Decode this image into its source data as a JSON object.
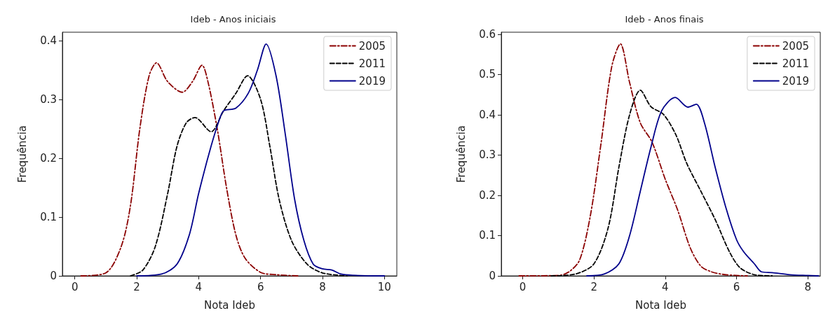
{
  "chart_data": [
    {
      "type": "line",
      "title": "Ideb - Anos iniciais",
      "xlabel": "Nota Ideb",
      "ylabel": "Frequência",
      "xlim": [
        -0.4,
        10.4
      ],
      "ylim": [
        0,
        0.414
      ],
      "xticks": [
        0,
        2,
        4,
        6,
        8,
        10
      ],
      "yticks": [
        0,
        0.1,
        0.2,
        0.3,
        0.4
      ],
      "grid": false,
      "legend": "top right",
      "marker": "none",
      "series": [
        {
          "name": "2005",
          "color": "#8b0000",
          "line_style": "dashdot",
          "x": [
            0.2,
            1.0,
            1.5,
            1.8,
            2.1,
            2.4,
            2.64,
            3.0,
            3.47,
            3.8,
            4.11,
            4.3,
            4.6,
            4.9,
            5.2,
            5.5,
            6.0,
            6.5,
            7.2
          ],
          "values": [
            0,
            0.005,
            0.05,
            0.12,
            0.25,
            0.34,
            0.362,
            0.33,
            0.312,
            0.33,
            0.358,
            0.33,
            0.25,
            0.15,
            0.07,
            0.03,
            0.006,
            0.002,
            0
          ]
        },
        {
          "name": "2011",
          "color": "#000000",
          "line_style": "dashed",
          "x": [
            1.8,
            2.2,
            2.6,
            3.0,
            3.3,
            3.6,
            3.88,
            4.4,
            4.8,
            5.2,
            5.58,
            6.0,
            6.3,
            6.6,
            7.0,
            7.5,
            8.0,
            8.8
          ],
          "values": [
            0,
            0.01,
            0.05,
            0.14,
            0.22,
            0.26,
            0.269,
            0.245,
            0.28,
            0.31,
            0.34,
            0.3,
            0.22,
            0.13,
            0.06,
            0.02,
            0.005,
            0
          ]
        },
        {
          "name": "2019",
          "color": "#00008b",
          "line_style": "solid",
          "x": [
            2.0,
            2.8,
            3.3,
            3.7,
            4.0,
            4.4,
            4.7,
            4.82,
            5.2,
            5.6,
            5.9,
            6.18,
            6.5,
            6.8,
            7.1,
            7.4,
            7.7,
            8.0,
            8.3,
            8.6,
            9.0,
            10.0
          ],
          "values": [
            0,
            0.003,
            0.02,
            0.07,
            0.14,
            0.22,
            0.27,
            0.281,
            0.285,
            0.31,
            0.35,
            0.394,
            0.34,
            0.24,
            0.13,
            0.06,
            0.02,
            0.012,
            0.01,
            0.003,
            0.001,
            0
          ]
        }
      ]
    },
    {
      "type": "line",
      "title": "Ideb - Anos finais",
      "xlabel": "Nota Ideb",
      "ylabel": "Frequência",
      "xlim": [
        -0.6,
        8.35
      ],
      "ylim": [
        0,
        0.605
      ],
      "xticks": [
        0,
        2,
        4,
        6,
        8
      ],
      "yticks": [
        0,
        0.1,
        0.2,
        0.3,
        0.4,
        0.5,
        0.6
      ],
      "grid": false,
      "legend": "top right",
      "marker": "none",
      "series": [
        {
          "name": "2005",
          "color": "#8b0000",
          "line_style": "dashdot",
          "x": [
            -0.1,
            1.0,
            1.3,
            1.6,
            1.9,
            2.2,
            2.5,
            2.74,
            3.0,
            3.3,
            3.63,
            4.0,
            4.35,
            4.7,
            5.0,
            5.3,
            5.6,
            6.0,
            6.3
          ],
          "values": [
            0,
            0.001,
            0.01,
            0.04,
            0.15,
            0.33,
            0.52,
            0.576,
            0.48,
            0.38,
            0.332,
            0.24,
            0.163,
            0.07,
            0.024,
            0.01,
            0.004,
            0.001,
            0
          ]
        },
        {
          "name": "2011",
          "color": "#000000",
          "line_style": "dashed",
          "x": [
            0.8,
            1.5,
            2.0,
            2.4,
            2.7,
            3.0,
            3.3,
            3.6,
            3.95,
            4.3,
            4.6,
            5.0,
            5.4,
            5.8,
            6.1,
            6.5,
            7.0
          ],
          "values": [
            0,
            0.005,
            0.03,
            0.12,
            0.27,
            0.4,
            0.461,
            0.42,
            0.401,
            0.35,
            0.28,
            0.21,
            0.14,
            0.06,
            0.02,
            0.003,
            0
          ]
        },
        {
          "name": "2019",
          "color": "#00008b",
          "line_style": "solid",
          "x": [
            1.8,
            2.3,
            2.7,
            3.0,
            3.3,
            3.6,
            3.9,
            4.28,
            4.64,
            4.87,
            5.1,
            5.4,
            5.7,
            6.0,
            6.2,
            6.5,
            6.7,
            7.0,
            7.5,
            8.0,
            8.3
          ],
          "values": [
            0,
            0.005,
            0.03,
            0.1,
            0.21,
            0.32,
            0.41,
            0.443,
            0.419,
            0.426,
            0.38,
            0.27,
            0.17,
            0.09,
            0.06,
            0.03,
            0.01,
            0.008,
            0.003,
            0.001,
            0
          ]
        }
      ]
    }
  ]
}
